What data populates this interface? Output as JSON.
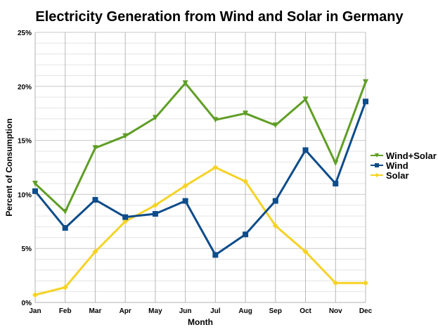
{
  "chart_data": {
    "type": "line",
    "title": "Electricity Generation from Wind and Solar in Germany",
    "xlabel": "Month",
    "ylabel": "Percent of Consumption",
    "categories": [
      "Jan",
      "Feb",
      "Mar",
      "Apr",
      "May",
      "Jun",
      "Jul",
      "Aug",
      "Sep",
      "Oct",
      "Nov",
      "Dec"
    ],
    "ylim": [
      0,
      25
    ],
    "yticks": [
      "0%",
      "5%",
      "10%",
      "15%",
      "20%",
      "25%"
    ],
    "ytick_values": [
      0,
      5,
      10,
      15,
      20,
      25
    ],
    "minor_grid_step": 1,
    "grid": true,
    "legend_position": "right",
    "series": [
      {
        "name": "Wind+Solar",
        "color": "#5f9e25",
        "marker": "triangle-down",
        "values": [
          11.0,
          8.4,
          14.3,
          15.4,
          17.1,
          20.3,
          16.9,
          17.5,
          16.4,
          18.8,
          12.9,
          20.4
        ]
      },
      {
        "name": "Wind",
        "color": "#0e4c8a",
        "marker": "square",
        "values": [
          10.3,
          6.9,
          9.5,
          7.9,
          8.2,
          9.4,
          4.4,
          6.3,
          9.4,
          14.1,
          11.0,
          18.6
        ]
      },
      {
        "name": "Solar",
        "color": "#f5d327",
        "marker": "diamond",
        "values": [
          0.7,
          1.4,
          4.7,
          7.5,
          9.0,
          10.8,
          12.5,
          11.2,
          7.1,
          4.7,
          1.8,
          1.8
        ]
      }
    ]
  }
}
